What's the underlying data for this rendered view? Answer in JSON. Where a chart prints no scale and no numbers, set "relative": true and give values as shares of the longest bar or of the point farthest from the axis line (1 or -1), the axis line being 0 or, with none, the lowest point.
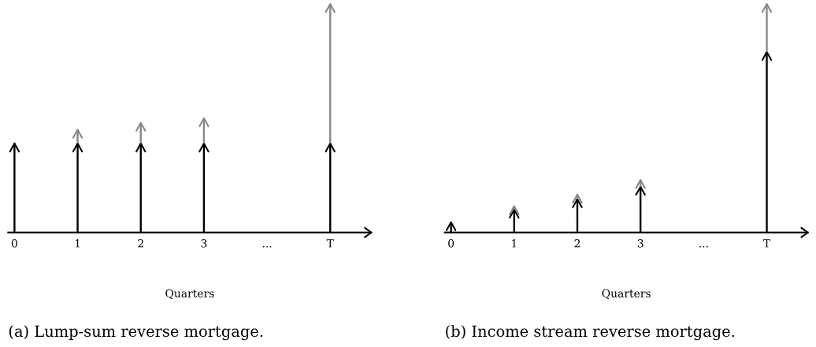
{
  "chart_data": [
    {
      "type": "bar",
      "stacked": true,
      "relative": true,
      "title": "(a) Lump-sum reverse mortgage.",
      "xlabel": "Quarters",
      "categories": [
        "0",
        "1",
        "2",
        "3",
        "...",
        "T"
      ],
      "legend": false,
      "grid": false,
      "series": [
        {
          "color": "#000000",
          "values": [
            0.39,
            0.39,
            0.39,
            0.39,
            null,
            0.39
          ]
        },
        {
          "color": "#888888",
          "values": [
            0,
            0.06,
            0.09,
            0.11,
            null,
            0.61
          ]
        }
      ]
    },
    {
      "type": "bar",
      "stacked": true,
      "relative": true,
      "title": "(b) Income stream reverse mortgage.",
      "xlabel": "Quarters",
      "categories": [
        "0",
        "1",
        "2",
        "3",
        "...",
        "T"
      ],
      "legend": false,
      "grid": false,
      "series": [
        {
          "color": "#000000",
          "values": [
            0.045,
            0.1,
            0.146,
            0.2,
            null,
            0.79
          ]
        },
        {
          "color": "#888888",
          "values": [
            0,
            0.015,
            0.02,
            0.03,
            null,
            0.21
          ]
        }
      ]
    }
  ]
}
